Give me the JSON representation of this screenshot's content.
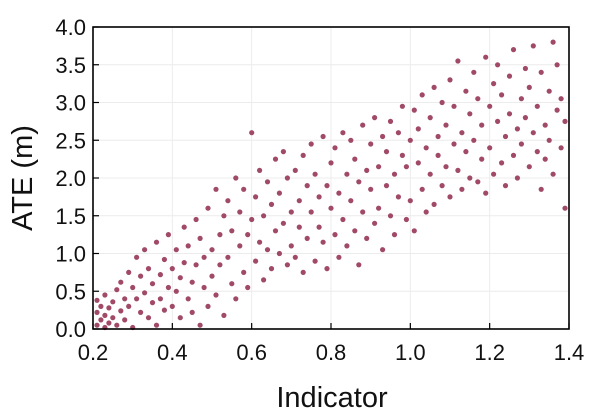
{
  "chart_data": {
    "type": "scatter",
    "title": "",
    "xlabel": "Indicator",
    "ylabel": "ATE (m)",
    "xlim": [
      0.2,
      1.4
    ],
    "ylim": [
      0.0,
      4.0
    ],
    "x_ticks": [
      "0.2",
      "0.4",
      "0.6",
      "0.8",
      "1.0",
      "1.2",
      "1.4"
    ],
    "y_ticks": [
      "0.0",
      "0.5",
      "1.0",
      "1.5",
      "2.0",
      "2.5",
      "3.0",
      "3.5",
      "4.0"
    ],
    "grid": true,
    "legend": "none",
    "marker_color": "#a14a68",
    "series": [
      {
        "points": [
          [
            0.21,
            0.05
          ],
          [
            0.21,
            0.22
          ],
          [
            0.21,
            0.38
          ],
          [
            0.22,
            0.12
          ],
          [
            0.22,
            0.3
          ],
          [
            0.23,
            0.02
          ],
          [
            0.23,
            0.45
          ],
          [
            0.23,
            0.18
          ],
          [
            0.24,
            0.28
          ],
          [
            0.24,
            0.08
          ],
          [
            0.25,
            0.36
          ],
          [
            0.25,
            0.15
          ],
          [
            0.26,
            0.52
          ],
          [
            0.26,
            0.05
          ],
          [
            0.27,
            0.24
          ],
          [
            0.27,
            0.62
          ],
          [
            0.28,
            0.4
          ],
          [
            0.28,
            0.12
          ],
          [
            0.29,
            0.75
          ],
          [
            0.29,
            0.3
          ],
          [
            0.3,
            0.55
          ],
          [
            0.3,
            0.02
          ],
          [
            0.31,
            0.95
          ],
          [
            0.31,
            0.4
          ],
          [
            0.32,
            0.22
          ],
          [
            0.32,
            0.7
          ],
          [
            0.33,
            1.05
          ],
          [
            0.33,
            0.48
          ],
          [
            0.34,
            0.15
          ],
          [
            0.34,
            0.8
          ],
          [
            0.35,
            0.6
          ],
          [
            0.35,
            0.35
          ],
          [
            0.36,
            1.15
          ],
          [
            0.36,
            0.05
          ],
          [
            0.37,
            0.72
          ],
          [
            0.37,
            0.4
          ],
          [
            0.38,
            0.92
          ],
          [
            0.38,
            0.25
          ],
          [
            0.39,
            0.55
          ],
          [
            0.39,
            1.25
          ],
          [
            0.4,
            0.8
          ],
          [
            0.4,
            0.3
          ],
          [
            0.41,
            1.05
          ],
          [
            0.41,
            0.5
          ],
          [
            0.42,
            0.15
          ],
          [
            0.42,
            0.68
          ],
          [
            0.43,
            1.35
          ],
          [
            0.43,
            0.88
          ],
          [
            0.44,
            0.4
          ],
          [
            0.44,
            1.1
          ],
          [
            0.45,
            0.62
          ],
          [
            0.45,
            0.22
          ],
          [
            0.46,
            1.45
          ],
          [
            0.46,
            0.85
          ],
          [
            0.47,
            0.05
          ],
          [
            0.47,
            1.2
          ],
          [
            0.48,
            0.55
          ],
          [
            0.48,
            0.95
          ],
          [
            0.49,
            1.6
          ],
          [
            0.49,
            0.3
          ],
          [
            0.5,
            1.05
          ],
          [
            0.5,
            0.7
          ],
          [
            0.51,
            1.85
          ],
          [
            0.51,
            0.45
          ],
          [
            0.52,
            1.25
          ],
          [
            0.52,
            0.85
          ],
          [
            0.53,
            0.18
          ],
          [
            0.53,
            1.5
          ],
          [
            0.54,
            0.95
          ],
          [
            0.54,
            1.7
          ],
          [
            0.55,
            0.6
          ],
          [
            0.55,
            1.3
          ],
          [
            0.56,
            2.0
          ],
          [
            0.56,
            0.4
          ],
          [
            0.57,
            1.1
          ],
          [
            0.57,
            1.55
          ],
          [
            0.58,
            0.75
          ],
          [
            0.58,
            1.85
          ],
          [
            0.59,
            1.25
          ],
          [
            0.59,
            0.55
          ],
          [
            0.6,
            1.45
          ],
          [
            0.6,
            2.6
          ],
          [
            0.61,
            0.9
          ],
          [
            0.61,
            1.75
          ],
          [
            0.62,
            1.15
          ],
          [
            0.62,
            2.1
          ],
          [
            0.63,
            0.65
          ],
          [
            0.63,
            1.5
          ],
          [
            0.64,
            1.95
          ],
          [
            0.64,
            1.05
          ],
          [
            0.65,
            1.65
          ],
          [
            0.65,
            0.8
          ],
          [
            0.66,
            2.25
          ],
          [
            0.66,
            1.3
          ],
          [
            0.67,
            1.0
          ],
          [
            0.67,
            1.8
          ],
          [
            0.68,
            2.35
          ],
          [
            0.68,
            1.4
          ],
          [
            0.69,
            0.85
          ],
          [
            0.69,
            2.0
          ],
          [
            0.7,
            1.55
          ],
          [
            0.7,
            1.1
          ],
          [
            0.71,
            2.1
          ],
          [
            0.71,
            0.95
          ],
          [
            0.72,
            1.7
          ],
          [
            0.72,
            1.35
          ],
          [
            0.73,
            2.3
          ],
          [
            0.73,
            0.75
          ],
          [
            0.74,
            1.9
          ],
          [
            0.74,
            1.2
          ],
          [
            0.75,
            2.45
          ],
          [
            0.75,
            1.55
          ],
          [
            0.76,
            0.9
          ],
          [
            0.76,
            2.05
          ],
          [
            0.77,
            1.35
          ],
          [
            0.77,
            1.75
          ],
          [
            0.78,
            2.55
          ],
          [
            0.78,
            1.15
          ],
          [
            0.79,
            1.9
          ],
          [
            0.79,
            0.8
          ],
          [
            0.8,
            1.6
          ],
          [
            0.8,
            2.2
          ],
          [
            0.81,
            1.25
          ],
          [
            0.81,
            2.4
          ],
          [
            0.82,
            1.8
          ],
          [
            0.82,
            0.95
          ],
          [
            0.83,
            2.6
          ],
          [
            0.83,
            1.45
          ],
          [
            0.84,
            2.05
          ],
          [
            0.84,
            1.1
          ],
          [
            0.85,
            1.7
          ],
          [
            0.85,
            2.5
          ],
          [
            0.86,
            1.3
          ],
          [
            0.86,
            2.25
          ],
          [
            0.87,
            1.95
          ],
          [
            0.87,
            0.85
          ],
          [
            0.88,
            2.7
          ],
          [
            0.88,
            1.55
          ],
          [
            0.89,
            2.1
          ],
          [
            0.89,
            1.2
          ],
          [
            0.9,
            1.85
          ],
          [
            0.9,
            2.45
          ],
          [
            0.91,
            1.4
          ],
          [
            0.91,
            2.8
          ],
          [
            0.92,
            2.15
          ],
          [
            0.92,
            1.6
          ],
          [
            0.93,
            2.55
          ],
          [
            0.93,
            1.05
          ],
          [
            0.94,
            1.9
          ],
          [
            0.94,
            2.35
          ],
          [
            0.95,
            1.5
          ],
          [
            0.95,
            2.75
          ],
          [
            0.96,
            2.05
          ],
          [
            0.96,
            1.25
          ],
          [
            0.97,
            2.6
          ],
          [
            0.97,
            1.75
          ],
          [
            0.98,
            2.3
          ],
          [
            0.98,
            2.95
          ],
          [
            0.99,
            1.45
          ],
          [
            0.99,
            2.15
          ],
          [
            1.0,
            2.5
          ],
          [
            1.0,
            1.7
          ],
          [
            1.01,
            2.9
          ],
          [
            1.01,
            1.3
          ],
          [
            1.02,
            2.2
          ],
          [
            1.02,
            2.65
          ],
          [
            1.03,
            1.85
          ],
          [
            1.03,
            3.1
          ],
          [
            1.04,
            2.4
          ],
          [
            1.04,
            1.55
          ],
          [
            1.05,
            2.8
          ],
          [
            1.05,
            2.05
          ],
          [
            1.06,
            3.2
          ],
          [
            1.06,
            1.65
          ],
          [
            1.07,
            2.55
          ],
          [
            1.07,
            2.3
          ],
          [
            1.08,
            3.0
          ],
          [
            1.08,
            1.9
          ],
          [
            1.09,
            2.7
          ],
          [
            1.09,
            2.15
          ],
          [
            1.1,
            3.3
          ],
          [
            1.1,
            1.75
          ],
          [
            1.11,
            2.45
          ],
          [
            1.11,
            2.95
          ],
          [
            1.12,
            2.1
          ],
          [
            1.12,
            3.55
          ],
          [
            1.13,
            2.6
          ],
          [
            1.13,
            1.85
          ],
          [
            1.14,
            3.15
          ],
          [
            1.14,
            2.35
          ],
          [
            1.15,
            2.85
          ],
          [
            1.15,
            2.0
          ],
          [
            1.16,
            3.4
          ],
          [
            1.16,
            2.5
          ],
          [
            1.17,
            1.95
          ],
          [
            1.17,
            3.05
          ],
          [
            1.18,
            2.7
          ],
          [
            1.18,
            2.25
          ],
          [
            1.19,
            3.6
          ],
          [
            1.19,
            1.8
          ],
          [
            1.2,
            2.95
          ],
          [
            1.2,
            2.4
          ],
          [
            1.21,
            3.25
          ],
          [
            1.21,
            2.05
          ],
          [
            1.22,
            2.75
          ],
          [
            1.22,
            3.5
          ],
          [
            1.23,
            2.2
          ],
          [
            1.23,
            3.1
          ],
          [
            1.24,
            2.55
          ],
          [
            1.24,
            1.9
          ],
          [
            1.25,
            3.35
          ],
          [
            1.25,
            2.85
          ],
          [
            1.26,
            2.3
          ],
          [
            1.26,
            3.7
          ],
          [
            1.27,
            2.65
          ],
          [
            1.27,
            2.0
          ],
          [
            1.28,
            3.05
          ],
          [
            1.28,
            2.45
          ],
          [
            1.29,
            3.45
          ],
          [
            1.29,
            2.8
          ],
          [
            1.3,
            2.15
          ],
          [
            1.3,
            3.2
          ],
          [
            1.31,
            2.6
          ],
          [
            1.31,
            3.75
          ],
          [
            1.32,
            2.35
          ],
          [
            1.32,
            2.95
          ],
          [
            1.33,
            1.85
          ],
          [
            1.33,
            3.4
          ],
          [
            1.34,
            2.7
          ],
          [
            1.34,
            2.25
          ],
          [
            1.35,
            3.15
          ],
          [
            1.35,
            2.5
          ],
          [
            1.36,
            3.8
          ],
          [
            1.36,
            2.05
          ],
          [
            1.37,
            2.9
          ],
          [
            1.37,
            3.5
          ],
          [
            1.38,
            2.4
          ],
          [
            1.38,
            3.05
          ],
          [
            1.39,
            1.6
          ],
          [
            1.39,
            2.75
          ]
        ]
      }
    ]
  }
}
